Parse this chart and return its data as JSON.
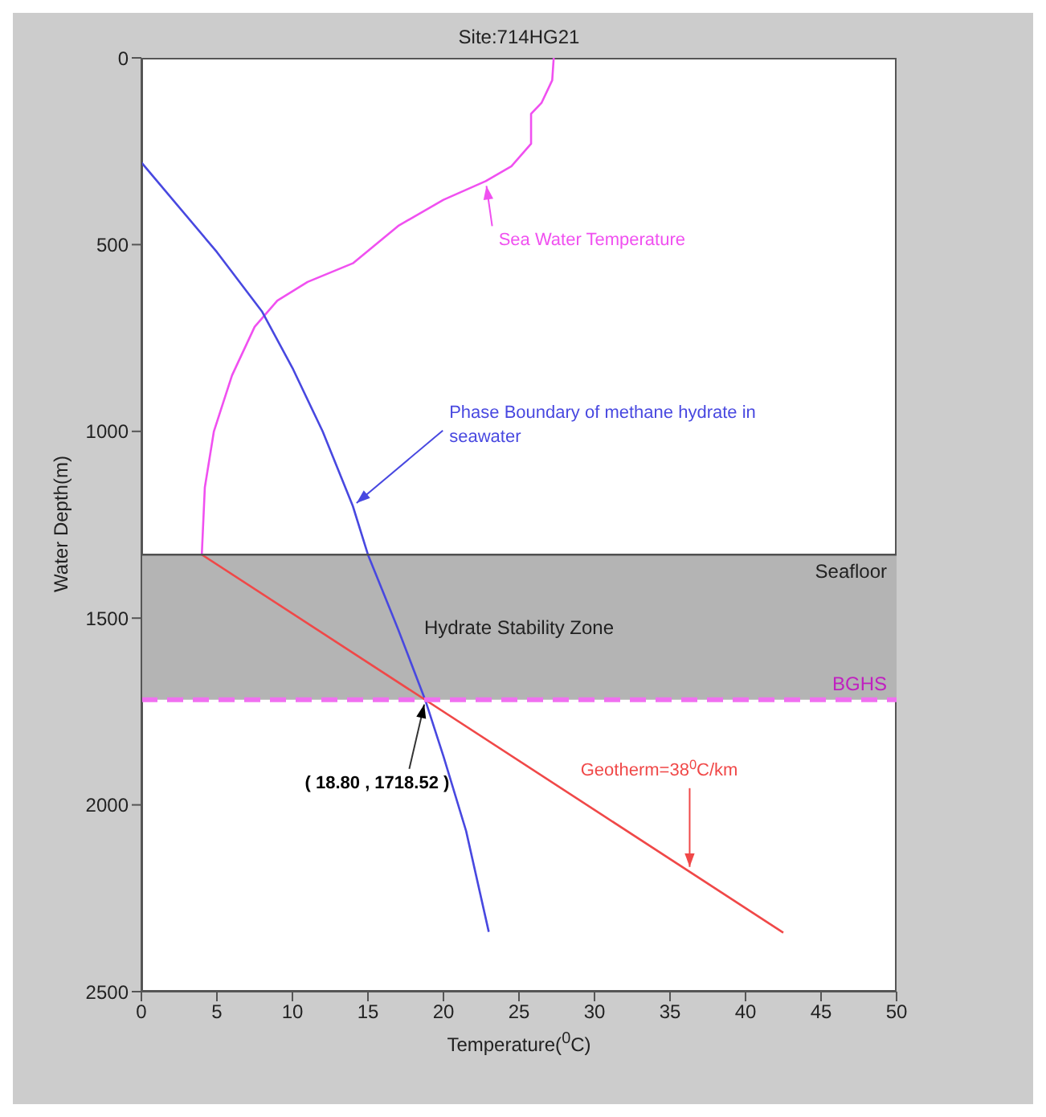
{
  "chart_data": {
    "type": "line",
    "title": "Site:714HG21",
    "xlabel": "Temperature($^{0}$C)",
    "ylabel": "Water Depth(m)",
    "xlim": [
      0,
      50
    ],
    "xticks": [
      0,
      5,
      10,
      15,
      20,
      25,
      30,
      35,
      40,
      45,
      50
    ],
    "ylim": [
      2500,
      0
    ],
    "yticks": [
      0,
      500,
      1000,
      1500,
      2000,
      2500
    ],
    "series": [
      {
        "color": "#f050f0",
        "x": [
          27.3,
          27.2,
          26.5,
          25.8,
          25.8,
          24.5,
          22.8,
          20,
          17,
          14,
          11,
          9,
          7.5,
          6,
          4.8,
          4.2,
          4.0
        ],
        "values": [
          0,
          60,
          120,
          150,
          230,
          290,
          330,
          380,
          450,
          550,
          600,
          650,
          720,
          850,
          1000,
          1150,
          1330
        ]
      },
      {
        "color": "#4848e0",
        "x": [
          0,
          5,
          8,
          10,
          12,
          14,
          15,
          17,
          18.8,
          20,
          21.5,
          23
        ],
        "values": [
          280,
          520,
          680,
          830,
          1000,
          1200,
          1330,
          1530,
          1720,
          1870,
          2070,
          2340
        ]
      },
      {
        "color": "#f04848",
        "x": [
          4.0,
          42.5
        ],
        "values": [
          1330,
          2342
        ]
      }
    ],
    "bands": [
      {
        "axis": "y",
        "from": 1330,
        "to": 1718.52,
        "label": "Hydrate Stability Zone",
        "color": "#b4b4b4"
      }
    ],
    "ref_lines": [
      {
        "axis": "y",
        "value": 1330,
        "label": "Seafloor",
        "color": "#505050",
        "line_style": "solid"
      },
      {
        "axis": "y",
        "value": 1718.52,
        "label": "BGHS",
        "color": "#f070f0",
        "line_style": "dashed"
      }
    ],
    "annotations": [
      {
        "text": "Sea Water Temperature",
        "x": 22.8,
        "y": 330
      },
      {
        "text": "Phase Boundary of methane hydrate in seawater",
        "x": 14,
        "y": 1200
      },
      {
        "text": "( 18.80 , 1718.52 )",
        "x": 18.8,
        "y": 1718.52
      },
      {
        "text": "Geotherm=38$^{0}$C/km",
        "x": 36.3,
        "y": 2179
      }
    ]
  }
}
